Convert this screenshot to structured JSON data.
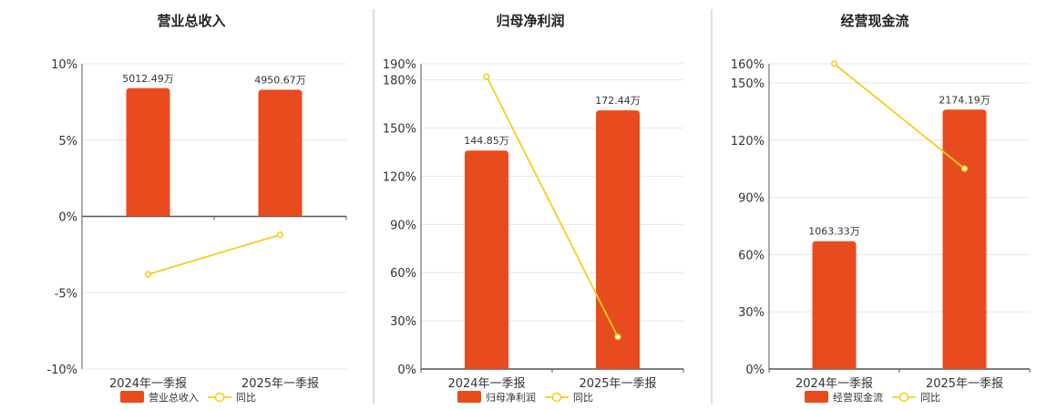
{
  "chart_data": [
    {
      "type": "bar",
      "title": "营业总收入",
      "categories": [
        "2024年一季报",
        "2025年一季报"
      ],
      "series": [
        {
          "name": "营业总收入",
          "type": "bar",
          "values": [
            8.4,
            8.3
          ],
          "labels": [
            "5012.49万",
            "4950.67万"
          ],
          "color": "#e84c1e"
        },
        {
          "name": "同比",
          "type": "line",
          "values": [
            -3.8,
            -1.2
          ],
          "color": "#f2cf1b"
        }
      ],
      "yticks": [
        "10%",
        "5%",
        "0%",
        "-5%",
        "-10%"
      ],
      "ylim": [
        -10,
        10
      ]
    },
    {
      "type": "bar",
      "title": "归母净利润",
      "categories": [
        "2024年一季报",
        "2025年一季报"
      ],
      "series": [
        {
          "name": "归母净利润",
          "type": "bar",
          "values": [
            136,
            161
          ],
          "labels": [
            "144.85万",
            "172.44万"
          ],
          "color": "#e84c1e"
        },
        {
          "name": "同比",
          "type": "line",
          "values": [
            182,
            20
          ],
          "color": "#f2cf1b"
        }
      ],
      "yticks": [
        "190%",
        "180%",
        "150%",
        "120%",
        "90%",
        "60%",
        "30%",
        "0%"
      ],
      "ylim": [
        0,
        190
      ]
    },
    {
      "type": "bar",
      "title": "经营现金流",
      "categories": [
        "2024年一季报",
        "2025年一季报"
      ],
      "series": [
        {
          "name": "经营现金流",
          "type": "bar",
          "values": [
            67,
            136
          ],
          "labels": [
            "1063.33万",
            "2174.19万"
          ],
          "color": "#e84c1e"
        },
        {
          "name": "同比",
          "type": "line",
          "values": [
            160,
            105
          ],
          "color": "#f2cf1b"
        }
      ],
      "yticks": [
        "160%",
        "150%",
        "120%",
        "90%",
        "60%",
        "30%",
        "0%"
      ],
      "ylim": [
        0,
        160
      ]
    }
  ]
}
